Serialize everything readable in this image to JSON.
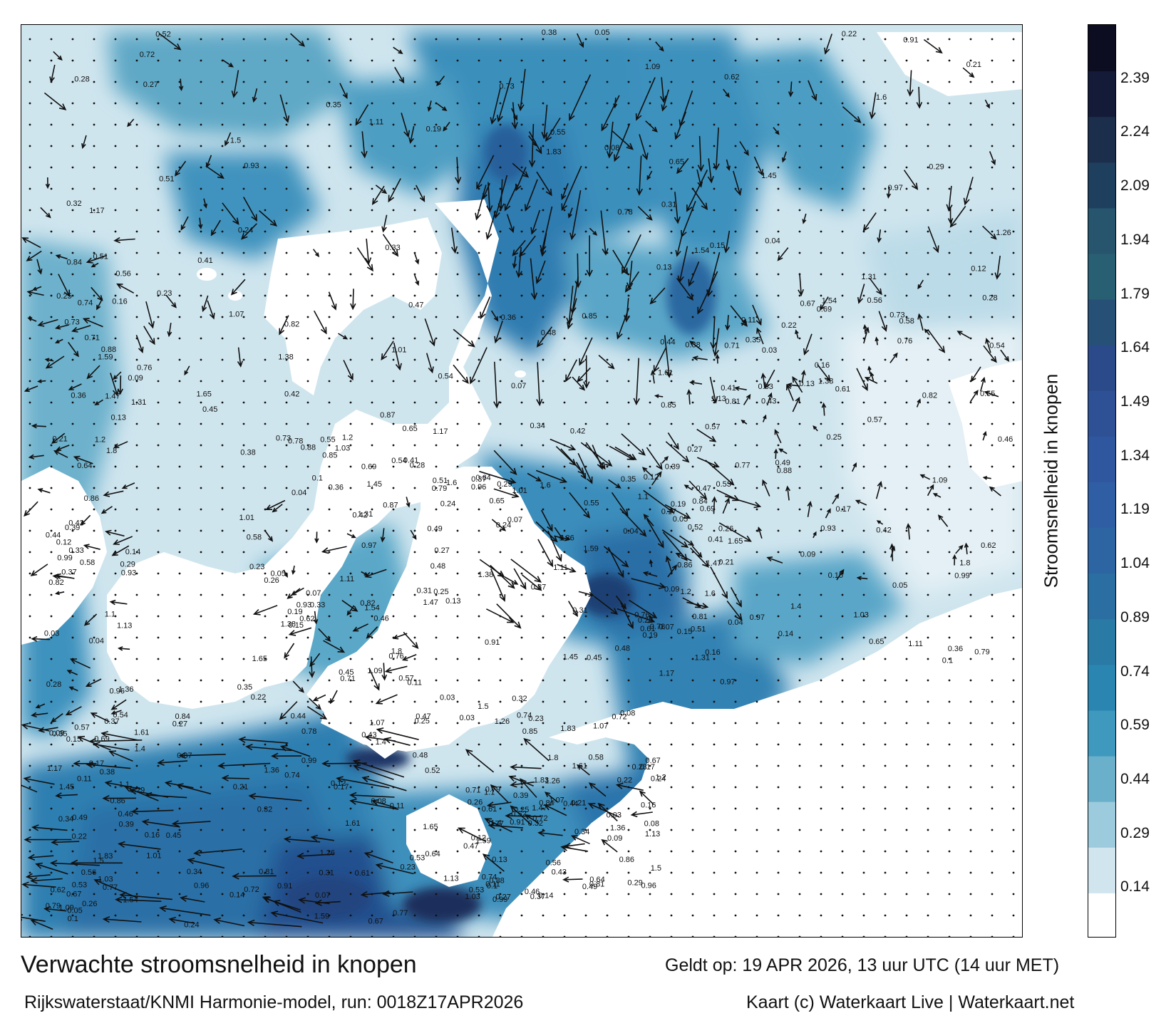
{
  "footer": {
    "title": "Verwachte stroomsnelheid in knopen",
    "model": "Rijkswaterstaat/KNMI Harmonie-model, run: 0018Z17APR2026",
    "valid": "Geldt op: 19 APR 2026, 13 uur UTC (14 uur MET)",
    "credit": "Kaart (c) Waterkaart Live | Waterkaart.net"
  },
  "colorbar": {
    "label": "Stroomsnelheid in knopen",
    "ticks": [
      "2.39",
      "2.24",
      "2.09",
      "1.94",
      "1.79",
      "1.64",
      "1.49",
      "1.34",
      "1.19",
      "1.04",
      "0.89",
      "0.74",
      "0.59",
      "0.44",
      "0.29",
      "0.14"
    ],
    "range": [
      0,
      2.54
    ],
    "colors": [
      "#ffffff",
      "#d0e5ee",
      "#9ccbdd",
      "#6bb0cb",
      "#3f98bd",
      "#2a86b1",
      "#2a7aa6",
      "#2b6fa2",
      "#2d64a2",
      "#2f5ea4",
      "#2f579f",
      "#2e5196",
      "#2b4a8a",
      "#275077",
      "#285f73",
      "#26556d",
      "#1f3f5f",
      "#1b2e4c",
      "#141b38",
      "#0d0d22"
    ]
  },
  "map": {
    "land_color": "#ffffff",
    "sea_colors": {
      "light": "#d6e9f1",
      "mid": "#6fb2cc",
      "strong": "#2e80b0",
      "deep": "#1d4f8a"
    },
    "current_labels": [
      {
        "text": "0.29"
      },
      {
        "text": "0.15"
      },
      {
        "text": "0.17"
      },
      {
        "text": "0.35"
      },
      {
        "text": "0.25"
      },
      {
        "text": "0.24"
      },
      {
        "text": "0.13"
      },
      {
        "text": "0.12"
      },
      {
        "text": "0.28"
      },
      {
        "text": "0.16"
      },
      {
        "text": "0.05"
      },
      {
        "text": "0.03"
      },
      {
        "text": "0.23"
      },
      {
        "text": "0.22"
      },
      {
        "text": "0.21"
      },
      {
        "text": "0.04"
      },
      {
        "text": "0.09"
      },
      {
        "text": "0.07"
      },
      {
        "text": "0.11"
      },
      {
        "text": "0.27"
      },
      {
        "text": "0.26"
      },
      {
        "text": "0.32"
      },
      {
        "text": "0.33"
      },
      {
        "text": "0.34"
      },
      {
        "text": "0.19"
      },
      {
        "text": "0.14"
      },
      {
        "text": "0.31"
      },
      {
        "text": "0.1"
      },
      {
        "text": "0.08"
      },
      {
        "text": "0.36"
      },
      {
        "text": "0.37"
      },
      {
        "text": "0.42"
      },
      {
        "text": "0.43"
      },
      {
        "text": "0.45"
      },
      {
        "text": "0.46"
      },
      {
        "text": "0.47"
      },
      {
        "text": "0.51"
      },
      {
        "text": "0.53"
      },
      {
        "text": "0.55"
      },
      {
        "text": "0.56"
      },
      {
        "text": "0.57"
      },
      {
        "text": "0.58"
      },
      {
        "text": "0.61"
      },
      {
        "text": "0.62"
      },
      {
        "text": "0.64"
      },
      {
        "text": "0.65"
      },
      {
        "text": "0.67"
      },
      {
        "text": "0.69"
      },
      {
        "text": "0.71"
      },
      {
        "text": "0.72"
      },
      {
        "text": "0.73"
      },
      {
        "text": "0.74"
      },
      {
        "text": "0.76"
      },
      {
        "text": "0.77"
      },
      {
        "text": "0.78"
      },
      {
        "text": "0.79"
      },
      {
        "text": "0.81"
      },
      {
        "text": "0.82"
      },
      {
        "text": "0.84"
      },
      {
        "text": "0.85"
      },
      {
        "text": "0.86"
      },
      {
        "text": "0.87"
      },
      {
        "text": "0.88"
      },
      {
        "text": "0.91"
      },
      {
        "text": "0.93"
      },
      {
        "text": "0.96"
      },
      {
        "text": "0.97"
      },
      {
        "text": "0.99"
      },
      {
        "text": "1.01"
      },
      {
        "text": "1.03"
      },
      {
        "text": "1.07"
      },
      {
        "text": "1.09"
      },
      {
        "text": "1.1"
      },
      {
        "text": "1.11"
      },
      {
        "text": "1.13"
      },
      {
        "text": "1.17"
      },
      {
        "text": "1.2"
      },
      {
        "text": "1.26"
      },
      {
        "text": "1.31"
      },
      {
        "text": "1.36"
      },
      {
        "text": "1.38"
      },
      {
        "text": "1.4"
      },
      {
        "text": "1.45"
      },
      {
        "text": "1.47"
      },
      {
        "text": "1.5"
      },
      {
        "text": "1.54"
      },
      {
        "text": "1.59"
      },
      {
        "text": "1.6"
      },
      {
        "text": "1.61"
      },
      {
        "text": "1.65"
      },
      {
        "text": "1.8"
      },
      {
        "text": "1.83"
      },
      {
        "text": "0.38"
      },
      {
        "text": "0.39"
      },
      {
        "text": "0.41"
      },
      {
        "text": "0.44"
      },
      {
        "text": "0.48"
      },
      {
        "text": "0.49"
      },
      {
        "text": "0.52"
      },
      {
        "text": "0.54"
      }
    ]
  }
}
